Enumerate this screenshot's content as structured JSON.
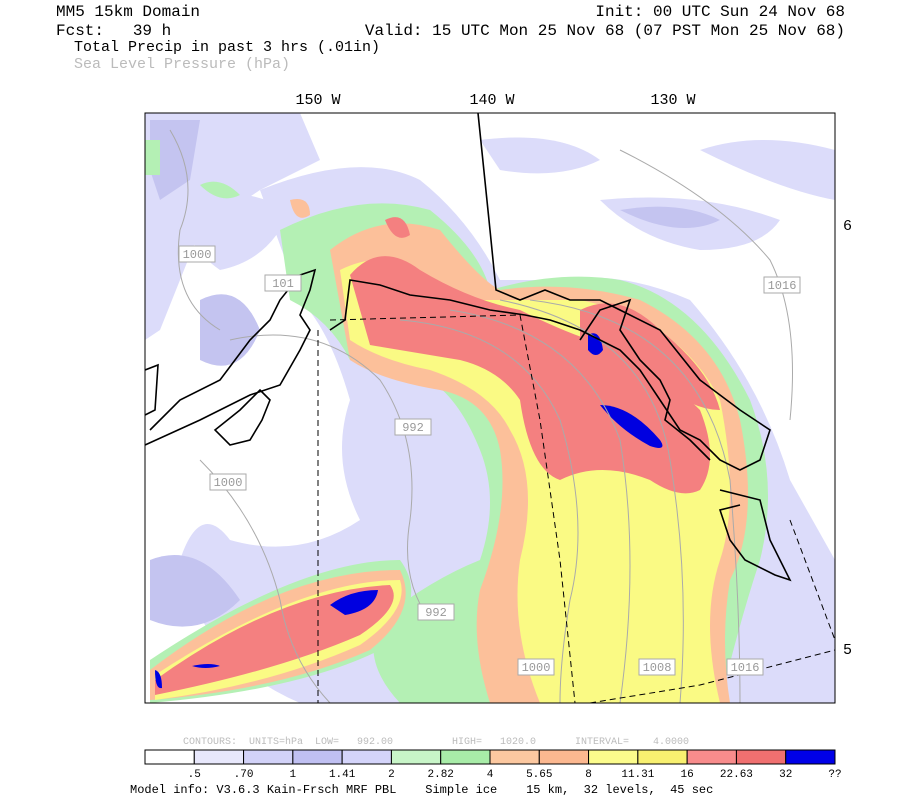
{
  "header": {
    "domain": "MM5 15km Domain",
    "init": "Init: 00 UTC Sun 24 Nov 68",
    "forecast": "Fcst:   39 h",
    "valid": "Valid: 15 UTC Mon 25 Nov 68 (07 PST Mon 25 Nov 68)",
    "field": "Total Precip in past 3 hrs (.01in)",
    "contour_field": "Sea Level Pressure (hPa)"
  },
  "map": {
    "longitude_labels": [
      "150 W",
      "140 W",
      "130 W"
    ],
    "latitude_labels": [
      "6",
      "5"
    ],
    "contour_labels": [
      "1000",
      "1016",
      "992",
      "1000",
      "992",
      "1000",
      "1008",
      "1016",
      "101"
    ]
  },
  "contour_info": {
    "low": "CONTOURS:  UNITS=hPa  LOW=   992.00",
    "high": "HIGH=   1020.0",
    "interval": "INTERVAL=    4.0000"
  },
  "colorbar": {
    "colors": [
      "#ffffff",
      "#e8e8fc",
      "#d2d2f8",
      "#c0c0f2",
      "#d4d4fa",
      "#c8f5c8",
      "#a8eca8",
      "#fcc8a0",
      "#fcb890",
      "#fcfc8c",
      "#f8f070",
      "#f88c8c",
      "#f07070",
      "#0000e8"
    ],
    "labels": [
      ".5",
      ".70",
      "1",
      "1.41",
      "2",
      "2.82",
      "4",
      "5.65",
      "8",
      "11.31",
      "16",
      "22.63",
      "32",
      "??"
    ]
  },
  "footer": "Model info: V3.6.3 Kain-Frsch MRF PBL    Simple ice    15 km,  32 levels,  45 sec"
}
